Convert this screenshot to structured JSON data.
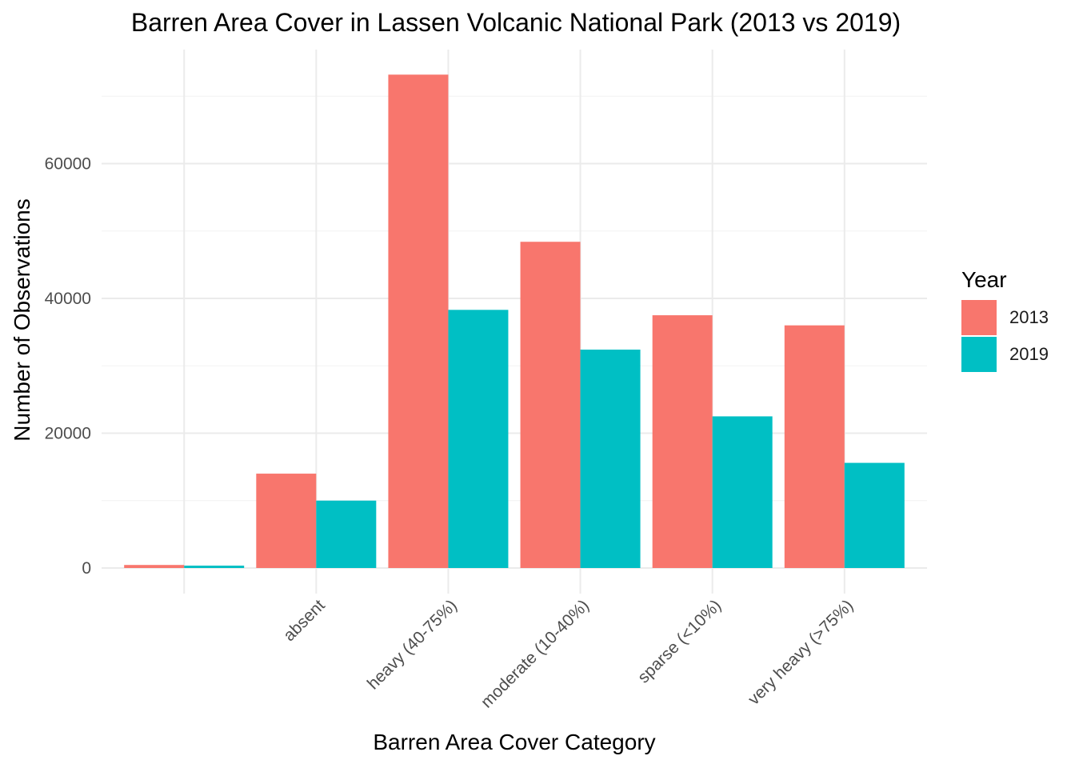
{
  "chart_data": {
    "type": "bar",
    "title": "Barren Area Cover in Lassen Volcanic National Park (2013 vs 2019)",
    "xlabel": "Barren Area Cover Category",
    "ylabel": "Number of Observations",
    "categories": [
      "",
      "absent",
      "heavy (40-75%)",
      "moderate (10-40%)",
      "sparse (<10%)",
      "very heavy (>75%)"
    ],
    "series": [
      {
        "name": "2013",
        "color": "#F8766D",
        "values": [
          450,
          14000,
          73200,
          48400,
          37500,
          36000
        ]
      },
      {
        "name": "2019",
        "color": "#00BFC4",
        "values": [
          350,
          10000,
          38300,
          32400,
          22500,
          15600
        ]
      }
    ],
    "y_ticks": [
      0,
      20000,
      40000,
      60000
    ],
    "y_tick_labels": [
      "0",
      "20000",
      "40000",
      "60000"
    ],
    "ylim": [
      0,
      76000
    ],
    "legend": {
      "title": "Year",
      "position": "right"
    },
    "grid": true
  }
}
